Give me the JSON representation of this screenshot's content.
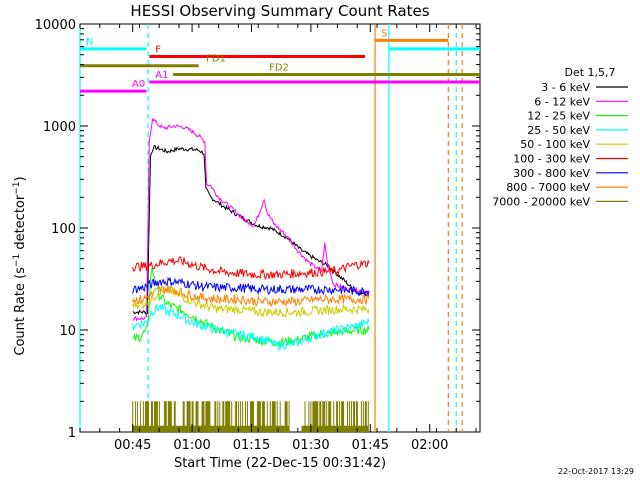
{
  "chart_data": {
    "type": "line",
    "title": "HESSI Observing Summary Count Rates",
    "xlabel": "Start Time (22-Dec-15 00:31:42)",
    "ylabel": "Count Rate (s⁻¹ detector⁻¹)",
    "ylabel_main": "Count Rate (s",
    "ylabel_sup1": "−1",
    "ylabel_mid": " detector",
    "ylabel_sup2": "−1",
    "ylabel_end": ")",
    "yscale": "log",
    "ylim": [
      1,
      10000
    ],
    "yticks": [
      {
        "v": 1,
        "label": "1"
      },
      {
        "v": 10,
        "label": "10"
      },
      {
        "v": 100,
        "label": "100"
      },
      {
        "v": 1000,
        "label": "1000"
      },
      {
        "v": 10000,
        "label": "10000"
      }
    ],
    "xlim_min": [
      0,
      101
    ],
    "xticks": [
      {
        "v": 13.3,
        "label": "00:45"
      },
      {
        "v": 28.3,
        "label": "01:00"
      },
      {
        "v": 43.3,
        "label": "01:15"
      },
      {
        "v": 58.3,
        "label": "01:30"
      },
      {
        "v": 73.3,
        "label": "01:45"
      },
      {
        "v": 88.3,
        "label": "02:00"
      }
    ],
    "legend_title": "Det 1,5,7",
    "legend_position": "right",
    "timestamp": "22-Oct-2017 13:29",
    "series": [
      {
        "name": "3 - 6 keV",
        "color": "#000000",
        "points": [
          [
            13.3,
            15
          ],
          [
            17,
            15
          ],
          [
            17.8,
            500
          ],
          [
            18.5,
            620
          ],
          [
            20,
            600
          ],
          [
            22,
            560
          ],
          [
            25,
            600
          ],
          [
            28,
            590
          ],
          [
            30,
            580
          ],
          [
            31.3,
            540
          ],
          [
            31.8,
            240
          ],
          [
            33,
            200
          ],
          [
            36,
            165
          ],
          [
            39,
            140
          ],
          [
            42,
            120
          ],
          [
            45,
            105
          ],
          [
            48,
            100
          ],
          [
            52,
            82
          ],
          [
            56,
            60
          ],
          [
            60,
            48
          ],
          [
            63,
            42
          ],
          [
            65,
            35
          ],
          [
            67,
            30
          ],
          [
            69,
            25
          ],
          [
            71,
            23
          ],
          [
            73,
            22
          ]
        ]
      },
      {
        "name": "6 - 12 keV",
        "color": "#ff00ff",
        "points": [
          [
            13.3,
            13
          ],
          [
            16.8,
            13
          ],
          [
            17.5,
            700
          ],
          [
            18.3,
            1200
          ],
          [
            19.5,
            1050
          ],
          [
            21,
            950
          ],
          [
            24,
            1000
          ],
          [
            26,
            980
          ],
          [
            28,
            900
          ],
          [
            30,
            800
          ],
          [
            31.5,
            700
          ],
          [
            32,
            270
          ],
          [
            33,
            260
          ],
          [
            35,
            200
          ],
          [
            38,
            160
          ],
          [
            41,
            125
          ],
          [
            44,
            105
          ],
          [
            45.5,
            150
          ],
          [
            46.5,
            195
          ],
          [
            47.3,
            140
          ],
          [
            49,
            110
          ],
          [
            52,
            85
          ],
          [
            55,
            60
          ],
          [
            58,
            45
          ],
          [
            60,
            40
          ],
          [
            61,
            38
          ],
          [
            61.8,
            70
          ],
          [
            62.5,
            45
          ],
          [
            64,
            28
          ],
          [
            68,
            25
          ],
          [
            73,
            24
          ]
        ]
      },
      {
        "name": "12 - 25 keV",
        "color": "#00ff00",
        "points": [
          [
            13.3,
            8
          ],
          [
            15,
            8.5
          ],
          [
            17,
            10
          ],
          [
            18,
            40
          ],
          [
            19,
            32
          ],
          [
            20,
            22
          ],
          [
            22,
            18
          ],
          [
            25,
            16
          ],
          [
            28,
            14
          ],
          [
            31,
            12
          ],
          [
            35,
            10
          ],
          [
            40,
            8.5
          ],
          [
            45,
            8
          ],
          [
            50,
            7.5
          ],
          [
            55,
            8
          ],
          [
            60,
            9
          ],
          [
            65,
            9.5
          ],
          [
            70,
            10
          ],
          [
            73,
            10
          ]
        ]
      },
      {
        "name": "25 - 50 keV",
        "color": "#00ffff",
        "points": [
          [
            13.3,
            11
          ],
          [
            15,
            11.5
          ],
          [
            17,
            12
          ],
          [
            18,
            15
          ],
          [
            20,
            17
          ],
          [
            22,
            15
          ],
          [
            25,
            14
          ],
          [
            28,
            12
          ],
          [
            31,
            11
          ],
          [
            35,
            10
          ],
          [
            40,
            9
          ],
          [
            45,
            8.5
          ],
          [
            50,
            7
          ],
          [
            55,
            7.5
          ],
          [
            60,
            9
          ],
          [
            65,
            10
          ],
          [
            70,
            11
          ],
          [
            73,
            12
          ]
        ]
      },
      {
        "name": "50 - 100 keV",
        "color": "#cccc00",
        "points": [
          [
            13.3,
            18
          ],
          [
            16,
            18
          ],
          [
            18,
            20
          ],
          [
            20,
            24
          ],
          [
            23,
            24
          ],
          [
            26,
            21
          ],
          [
            30,
            18
          ],
          [
            35,
            16
          ],
          [
            40,
            16
          ],
          [
            45,
            15
          ],
          [
            50,
            15
          ],
          [
            55,
            15
          ],
          [
            60,
            15.5
          ],
          [
            65,
            16
          ],
          [
            70,
            16
          ],
          [
            73,
            16
          ]
        ]
      },
      {
        "name": "100 - 300 keV",
        "color": "#ff0000",
        "points": [
          [
            13.3,
            42
          ],
          [
            16,
            42
          ],
          [
            18,
            43
          ],
          [
            20,
            45
          ],
          [
            23,
            48
          ],
          [
            26,
            47
          ],
          [
            29,
            43
          ],
          [
            32,
            40
          ],
          [
            36,
            37
          ],
          [
            40,
            36
          ],
          [
            45,
            35
          ],
          [
            50,
            35
          ],
          [
            55,
            36
          ],
          [
            60,
            37
          ],
          [
            65,
            38
          ],
          [
            68,
            42
          ],
          [
            70,
            44
          ],
          [
            73,
            45
          ]
        ]
      },
      {
        "name": "300 - 800 keV",
        "color": "#0000ff",
        "points": [
          [
            13.3,
            25
          ],
          [
            16,
            26
          ],
          [
            18,
            28
          ],
          [
            20,
            30
          ],
          [
            23,
            30
          ],
          [
            26,
            29
          ],
          [
            30,
            27
          ],
          [
            35,
            26
          ],
          [
            40,
            26
          ],
          [
            45,
            25
          ],
          [
            50,
            25
          ],
          [
            55,
            25
          ],
          [
            60,
            25
          ],
          [
            65,
            25
          ],
          [
            70,
            24
          ],
          [
            73,
            24
          ]
        ]
      },
      {
        "name": "800 - 7000 keV",
        "color": "#ff8000",
        "points": [
          [
            13.3,
            20
          ],
          [
            16,
            20
          ],
          [
            18,
            22
          ],
          [
            20,
            25
          ],
          [
            23,
            25
          ],
          [
            26,
            23
          ],
          [
            30,
            21
          ],
          [
            35,
            20
          ],
          [
            40,
            20
          ],
          [
            45,
            19
          ],
          [
            50,
            19
          ],
          [
            55,
            19
          ],
          [
            60,
            20
          ],
          [
            65,
            20
          ],
          [
            70,
            20
          ],
          [
            73,
            20
          ]
        ]
      },
      {
        "name": "7000 - 20000 keV",
        "color": "#808000",
        "points": [
          [
            13.3,
            2
          ],
          [
            73,
            2
          ]
        ]
      }
    ],
    "bars": [
      {
        "label": "N",
        "x1": 0,
        "x2": 16.8,
        "y": 5700,
        "color": "#00ffff"
      },
      {
        "label": "",
        "x1": 78,
        "x2": 101,
        "y": 5700,
        "color": "#00ffff"
      },
      {
        "label": "F",
        "x1": 17.5,
        "x2": 72,
        "y": 4800,
        "color": "#ff0000"
      },
      {
        "label": "FD1",
        "x1": 0,
        "x2": 30,
        "y": 3900,
        "color": "#808000"
      },
      {
        "label": "FD2",
        "x1": 23.5,
        "x2": 101,
        "y": 3200,
        "color": "#808000"
      },
      {
        "label": "S",
        "x1": 74.5,
        "x2": 93,
        "y": 6900,
        "color": "#ff8000"
      },
      {
        "label": "A0",
        "x1": 0,
        "x2": 16.8,
        "y": 2200,
        "color": "#ff00ff"
      },
      {
        "label": "A1",
        "x1": 17.5,
        "x2": 101,
        "y": 2700,
        "color": "#ff00ff"
      }
    ],
    "markers": [
      {
        "x": 0,
        "color": "#00ffff",
        "style": "solid"
      },
      {
        "x": 17.2,
        "color": "#00ffff",
        "style": "dashed"
      },
      {
        "x": 74.5,
        "color": "#ff8000",
        "style": "solid"
      },
      {
        "x": 78,
        "color": "#00ffff",
        "style": "solid"
      },
      {
        "x": 93,
        "color": "#ff8000",
        "style": "dashed"
      },
      {
        "x": 95,
        "color": "#00ffff",
        "style": "dashed"
      },
      {
        "x": 96.5,
        "color": "#ff8000",
        "style": "dashed"
      }
    ]
  }
}
